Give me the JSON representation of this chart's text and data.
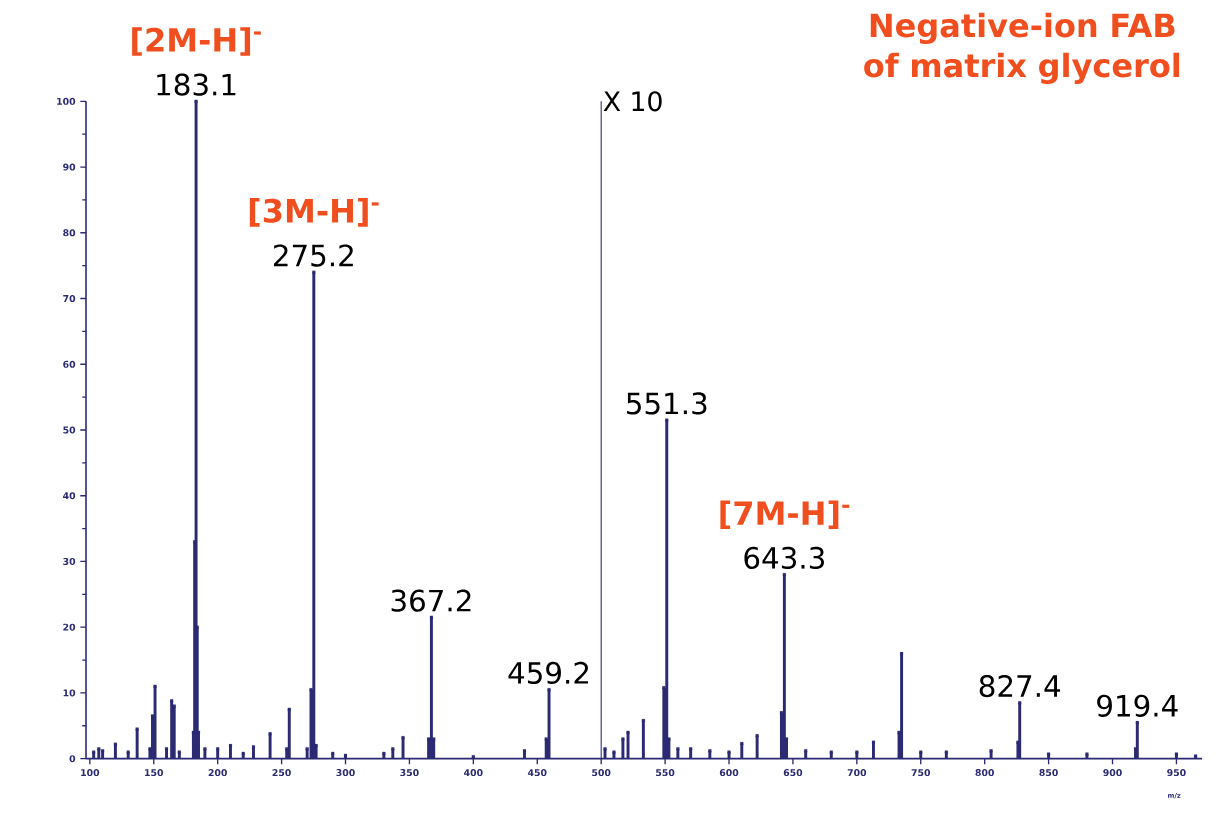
{
  "chart_data": {
    "type": "lollipop",
    "marker": "square",
    "title": "Negative-ion FAB of matrix glycerol",
    "xlabel": "m/z",
    "x": [
      103,
      107,
      110,
      120,
      130,
      137,
      147,
      149,
      151,
      160,
      164,
      166,
      170,
      181,
      182,
      183.1,
      184,
      185,
      190,
      200,
      210,
      220,
      228,
      241,
      254,
      256,
      270,
      273,
      275.2,
      277,
      290,
      300,
      330,
      337,
      345,
      365,
      367.2,
      369,
      400,
      440,
      457,
      459.2,
      503,
      510,
      517,
      521,
      533,
      549,
      551.3,
      553,
      560,
      570,
      585,
      600,
      610,
      622,
      641,
      643.3,
      645,
      660,
      680,
      700,
      713,
      733,
      735,
      750,
      770,
      805,
      826,
      827.4,
      850,
      880,
      918,
      919.4,
      950,
      965
    ],
    "values": [
      1,
      1.5,
      1.2,
      2.2,
      1,
      4.5,
      1.5,
      6.5,
      11,
      1.5,
      8.8,
      8,
      1,
      4,
      33,
      100,
      20,
      4,
      1.5,
      1.5,
      2,
      0.8,
      1.8,
      3.8,
      1.5,
      7.5,
      1.5,
      10.5,
      74,
      2,
      0.8,
      0.5,
      0.8,
      1.5,
      3.2,
      3,
      21.5,
      3,
      0.3,
      1.2,
      3,
      10.5,
      1.5,
      1,
      3,
      4,
      5.8,
      10.8,
      51.5,
      3,
      1.5,
      1.5,
      1.2,
      1,
      2.3,
      3.5,
      7,
      28,
      3,
      1.2,
      1,
      1,
      2.5,
      4,
      16,
      1,
      1,
      1.2,
      2.5,
      8.5,
      0.7,
      0.7,
      1.5,
      5.5,
      0.7,
      0.4
    ],
    "color": "#2b2a72",
    "xlim": [
      97,
      970
    ],
    "ylim": [
      0,
      100
    ],
    "xticks": [
      100,
      150,
      200,
      250,
      300,
      350,
      400,
      450,
      500,
      550,
      600,
      650,
      700,
      750,
      800,
      850,
      900,
      950
    ],
    "yticks": [
      0,
      10,
      20,
      30,
      40,
      50,
      60,
      70,
      80,
      90,
      100
    ],
    "ref_lines": [
      {
        "axis": "x",
        "value": 500,
        "label": "X 10",
        "color": "#2b2a72"
      }
    ],
    "annotations": [
      {
        "text": "183.1",
        "x": 183.1,
        "y": 100
      },
      {
        "text": "[2M-H]$^{-}$",
        "x": 183.1,
        "y": 100
      },
      {
        "text": "275.2",
        "x": 275.2,
        "y": 74
      },
      {
        "text": "[3M-H]$^{-}$",
        "x": 275.2,
        "y": 74
      },
      {
        "text": "367.2",
        "x": 367.2,
        "y": 21.5
      },
      {
        "text": "459.2",
        "x": 459.2,
        "y": 10.5
      },
      {
        "text": "551.3",
        "x": 551.3,
        "y": 51.5
      },
      {
        "text": "643.3",
        "x": 643.3,
        "y": 28
      },
      {
        "text": "[7M-H]$^{-}$",
        "x": 643.3,
        "y": 28
      },
      {
        "text": "827.4",
        "x": 827.4,
        "y": 8.5
      },
      {
        "text": "919.4",
        "x": 919.4,
        "y": 5.5
      }
    ]
  }
}
